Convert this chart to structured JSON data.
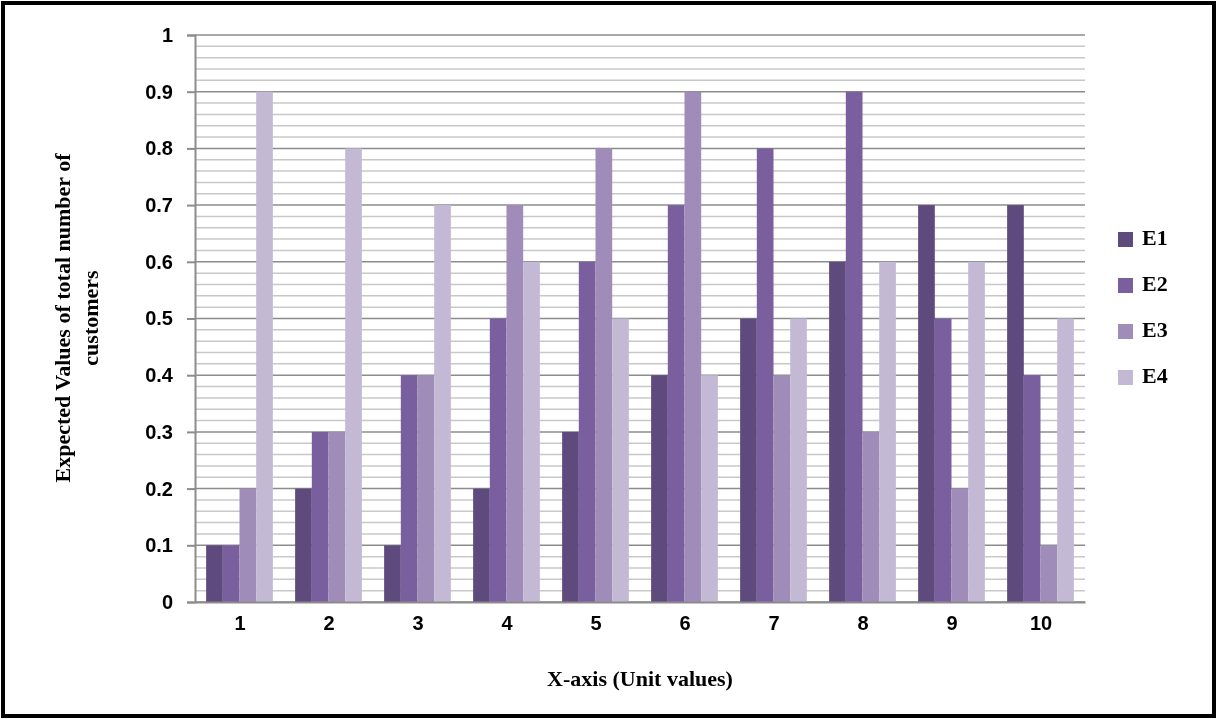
{
  "chart_data": {
    "type": "bar",
    "xlabel": "X-axis (Unit values)",
    "ylabel": "Expected Values of total number of customers",
    "categories": [
      "1",
      "2",
      "3",
      "4",
      "5",
      "6",
      "7",
      "8",
      "9",
      "10"
    ],
    "series": [
      {
        "name": "E1",
        "color": "#5f4a7d",
        "values": [
          0.1,
          0.2,
          0.1,
          0.2,
          0.3,
          0.4,
          0.5,
          0.6,
          0.7,
          0.7
        ]
      },
      {
        "name": "E2",
        "color": "#7a5f9f",
        "values": [
          0.1,
          0.3,
          0.4,
          0.5,
          0.6,
          0.7,
          0.8,
          0.9,
          0.5,
          0.4
        ]
      },
      {
        "name": "E3",
        "color": "#a08cb8",
        "values": [
          0.2,
          0.3,
          0.4,
          0.7,
          0.8,
          0.9,
          0.4,
          0.3,
          0.2,
          0.1
        ]
      },
      {
        "name": "E4",
        "color": "#c4b9d5",
        "values": [
          0.9,
          0.8,
          0.7,
          0.6,
          0.5,
          0.4,
          0.5,
          0.6,
          0.6,
          0.5
        ]
      }
    ],
    "ylim": [
      0,
      1
    ],
    "yticks": [
      0,
      {
        "value": 0.02,
        "label": null
      },
      {
        "value": 0.04,
        "label": null
      },
      {
        "value": 0.06,
        "label": null
      },
      {
        "value": 0.08,
        "label": null
      },
      0.1,
      {
        "value": 0.12,
        "label": null
      },
      {
        "value": 0.14,
        "label": null
      },
      {
        "value": 0.16,
        "label": null
      },
      {
        "value": 0.18,
        "label": null
      },
      0.2,
      {
        "value": 0.22,
        "label": null
      },
      {
        "value": 0.24,
        "label": null
      },
      {
        "value": 0.26,
        "label": null
      },
      {
        "value": 0.28,
        "label": null
      },
      0.3,
      {
        "value": 0.32,
        "label": null
      },
      {
        "value": 0.34,
        "label": null
      },
      {
        "value": 0.36,
        "label": null
      },
      {
        "value": 0.38,
        "label": null
      },
      0.4,
      {
        "value": 0.42,
        "label": null
      },
      {
        "value": 0.44,
        "label": null
      },
      {
        "value": 0.46,
        "label": null
      },
      {
        "value": 0.48,
        "label": null
      },
      0.5,
      {
        "value": 0.52,
        "label": null
      },
      {
        "value": 0.54,
        "label": null
      },
      {
        "value": 0.56,
        "label": null
      },
      {
        "value": 0.58,
        "label": null
      },
      0.6,
      {
        "value": 0.62,
        "label": null
      },
      {
        "value": 0.64,
        "label": null
      },
      {
        "value": 0.66,
        "label": null
      },
      {
        "value": 0.68,
        "label": null
      },
      0.7,
      {
        "value": 0.72,
        "label": null
      },
      {
        "value": 0.74,
        "label": null
      },
      {
        "value": 0.76,
        "label": null
      },
      {
        "value": 0.78,
        "label": null
      },
      0.8,
      {
        "value": 0.82,
        "label": null
      },
      {
        "value": 0.84,
        "label": null
      },
      {
        "value": 0.86,
        "label": null
      },
      {
        "value": 0.88,
        "label": null
      },
      0.9,
      {
        "value": 0.92,
        "label": null
      },
      {
        "value": 0.94,
        "label": null
      },
      {
        "value": 0.96,
        "label": null
      },
      {
        "value": 0.98,
        "label": null
      },
      1
    ],
    "grid": "y",
    "legend": "right"
  }
}
